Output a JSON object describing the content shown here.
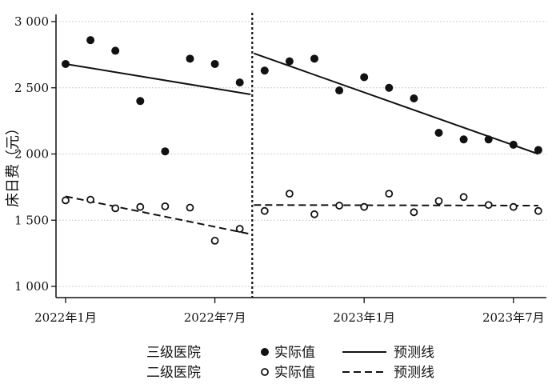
{
  "chart_data": {
    "type": "scatter",
    "ylabel": "床日费（元）",
    "xlabel": "",
    "ylim": [
      1000,
      3000
    ],
    "yticks": [
      1000,
      1500,
      2000,
      2500,
      3000
    ],
    "ytick_labels": [
      "1 000",
      "1 500",
      "2 000",
      "2 500",
      "3 000"
    ],
    "xticks": [
      0,
      6,
      12,
      18
    ],
    "xtick_labels": [
      "2022年1月",
      "2022年7月",
      "2023年1月",
      "2023年7月"
    ],
    "xlim": [
      -0.3,
      19.3
    ],
    "cutoff_x": 8,
    "grid": true,
    "x_months": [
      "2022-01",
      "2022-02",
      "2022-03",
      "2022-04",
      "2022-05",
      "2022-06",
      "2022-07",
      "2022-08",
      "2022-09",
      "2022-10",
      "2022-11",
      "2022-12",
      "2023-01",
      "2023-02",
      "2023-03",
      "2023-04",
      "2023-05",
      "2023-06",
      "2023-07",
      "2023-08"
    ],
    "x": [
      0,
      1,
      2,
      3,
      4,
      5,
      6,
      7,
      8,
      9,
      10,
      11,
      12,
      13,
      14,
      15,
      16,
      17,
      18,
      19
    ],
    "series": [
      {
        "name": "三级医院",
        "marker": "filled",
        "values": [
          2680,
          2860,
          2780,
          2400,
          2020,
          2720,
          2680,
          2540,
          2630,
          2700,
          2720,
          2480,
          2580,
          2500,
          2420,
          2160,
          2110,
          2110,
          2070,
          2030
        ],
        "fit": [
          {
            "x": [
              0,
              8
            ],
            "y": [
              2680,
              2450
            ]
          },
          {
            "x": [
              8,
              19
            ],
            "y": [
              2760,
              2000
            ]
          }
        ]
      },
      {
        "name": "二级医院",
        "marker": "open",
        "values": [
          1650,
          1655,
          1590,
          1600,
          1605,
          1595,
          1345,
          1435,
          1570,
          1700,
          1545,
          1610,
          1600,
          1700,
          1560,
          1645,
          1675,
          1615,
          1600,
          1570
        ],
        "fit": [
          {
            "x": [
              0,
              8
            ],
            "y": [
              1680,
              1395
            ]
          },
          {
            "x": [
              8,
              19
            ],
            "y": [
              1615,
              1610
            ]
          }
        ]
      }
    ],
    "legend": {
      "placement": "bottom",
      "rows": [
        {
          "group": "三级医院",
          "marker_label": "实际值",
          "line_label": "预测线",
          "line_style": "solid"
        },
        {
          "group": "二级医院",
          "marker_label": "实际值",
          "line_label": "预测线",
          "line_style": "dashed"
        }
      ]
    },
    "colors": {
      "ink": "#111111",
      "grid": "#bbbbbb"
    }
  }
}
